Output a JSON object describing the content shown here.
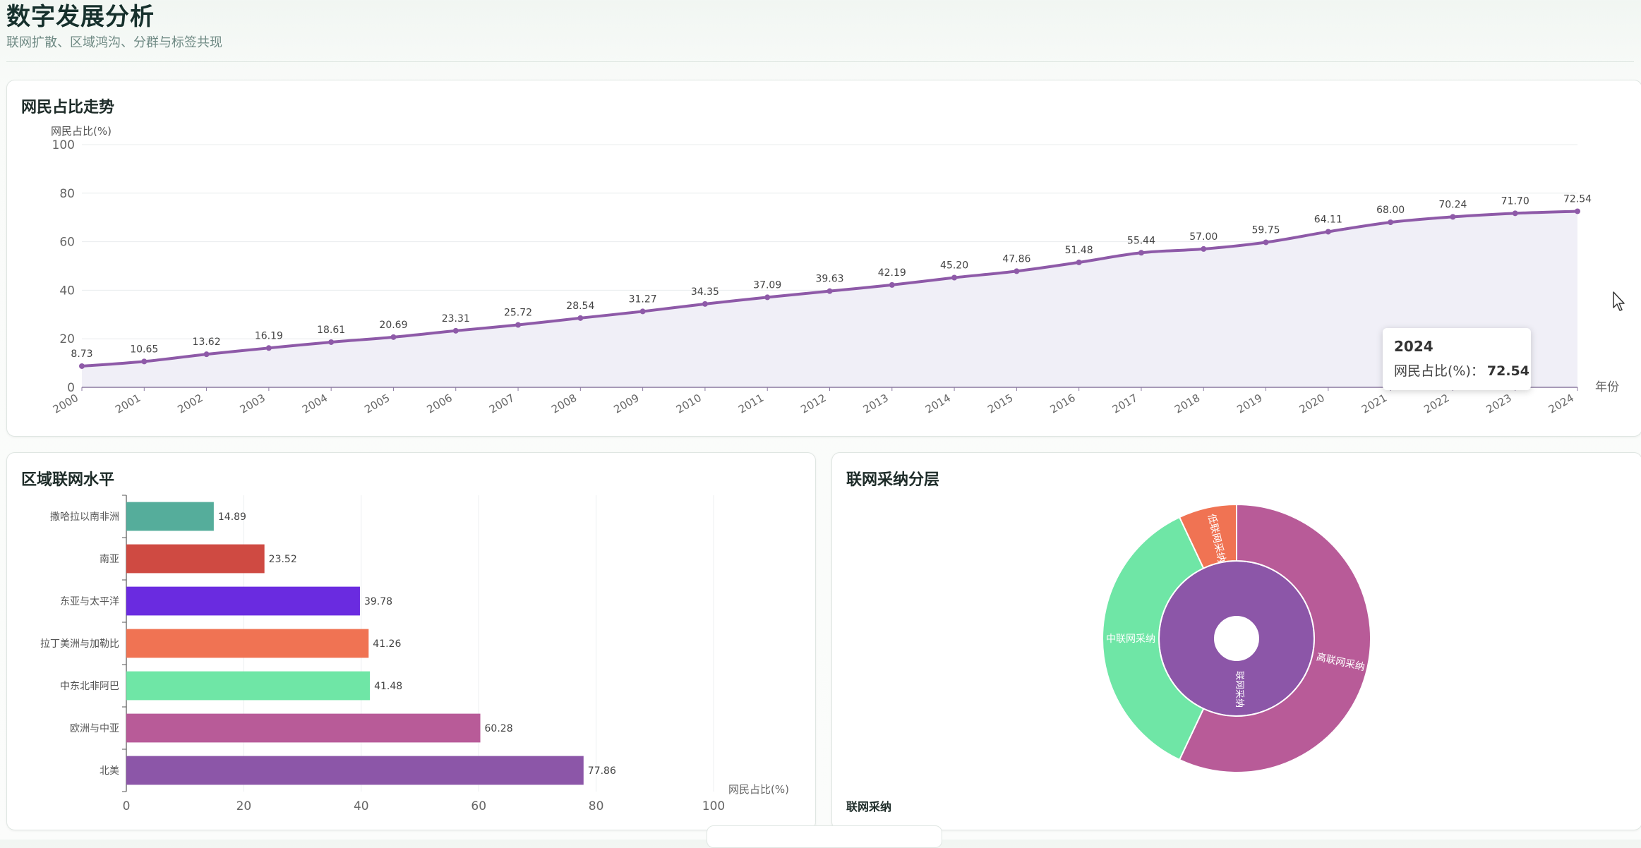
{
  "header": {
    "title": "数字发展分析",
    "subtitle": "联网扩散、区域鸿沟、分群与标签共现"
  },
  "chart_data": [
    {
      "type": "line",
      "title": "网民占比走势",
      "ylabel": "网民占比(%)",
      "xlabel": "年份",
      "ylim": [
        0,
        100
      ],
      "yticks": [
        0,
        20,
        40,
        60,
        80,
        100
      ],
      "area": true,
      "smooth": true,
      "color": "#8e5aa8",
      "area_color": "#f0eff7",
      "x": [
        "2000",
        "2001",
        "2002",
        "2003",
        "2004",
        "2005",
        "2006",
        "2007",
        "2008",
        "2009",
        "2010",
        "2011",
        "2012",
        "2013",
        "2014",
        "2015",
        "2016",
        "2017",
        "2018",
        "2019",
        "2020",
        "2021",
        "2022",
        "2023",
        "2024"
      ],
      "values": [
        8.73,
        10.65,
        13.62,
        16.19,
        18.61,
        20.69,
        23.31,
        25.72,
        28.54,
        31.27,
        34.35,
        37.09,
        39.63,
        42.19,
        45.2,
        47.86,
        51.48,
        55.44,
        57.0,
        59.75,
        64.11,
        68.0,
        70.24,
        71.7,
        72.54
      ],
      "labels": [
        "8.73",
        "10.65",
        "13.62",
        "16.19",
        "18.61",
        "20.69",
        "23.31",
        "25.72",
        "28.54",
        "31.27",
        "34.35",
        "37.09",
        "39.63",
        "42.19",
        "45.20",
        "47.86",
        "51.48",
        "55.44",
        "57.00",
        "59.75",
        "64.11",
        "68.00",
        "70.24",
        "71.70",
        "72.54"
      ],
      "tooltip": {
        "title": "2024",
        "label": "网民占比(%)：",
        "value": "72.54"
      }
    },
    {
      "type": "bar",
      "orientation": "horizontal",
      "title": "区域联网水平",
      "xlabel": "网民占比(%)",
      "xlim": [
        0,
        100
      ],
      "xticks": [
        0,
        20,
        40,
        60,
        80,
        100
      ],
      "categories": [
        "撒哈拉以南非洲",
        "南亚",
        "东亚与太平洋",
        "拉丁美洲与加勒比",
        "中东北非阿巴",
        "欧洲与中亚",
        "北美"
      ],
      "values": [
        14.89,
        23.52,
        39.78,
        41.26,
        41.48,
        60.28,
        77.86
      ],
      "labels": [
        "14.89",
        "23.52",
        "39.78",
        "41.26",
        "41.48",
        "60.28",
        "77.86"
      ],
      "colors": [
        "#55ad9b",
        "#cf4a42",
        "#6a2be0",
        "#f07353",
        "#6fe6a6",
        "#b85b98",
        "#8c56a8"
      ]
    },
    {
      "type": "sunburst",
      "title": "联网采纳分层",
      "root": {
        "name": "联网采纳",
        "color": "#8c56a8"
      },
      "children": [
        {
          "name": "高联网采纳",
          "value": 57,
          "color": "#b85b98"
        },
        {
          "name": "中联网采纳",
          "value": 36,
          "color": "#6fe6a6"
        },
        {
          "name": "低联网采纳",
          "value": 7,
          "color": "#f07353"
        }
      ],
      "footer_label": "联网采纳"
    }
  ]
}
